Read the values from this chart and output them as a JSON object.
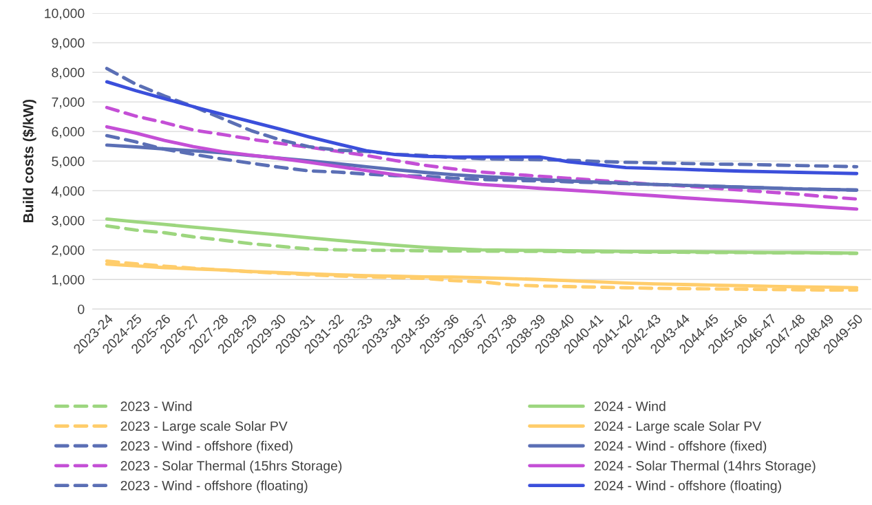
{
  "chart_data": {
    "type": "line",
    "ylabel": "Build costs ($/kW)",
    "categories": [
      "2023-24",
      "2024-25",
      "2025-26",
      "2026-27",
      "2027-28",
      "2028-29",
      "2029-30",
      "2030-31",
      "2031-32",
      "2032-33",
      "2033-34",
      "2034-35",
      "2035-36",
      "2036-37",
      "2037-38",
      "2038-39",
      "2039-40",
      "2040-41",
      "2041-42",
      "2042-43",
      "2043-44",
      "2044-45",
      "2045-46",
      "2046-47",
      "2047-48",
      "2048-49",
      "2049-50"
    ],
    "ylim": [
      0,
      10000
    ],
    "yticks": [
      0,
      {
        "value": 1000,
        "label": "1,000"
      },
      {
        "value": 2000,
        "label": "2,000"
      },
      {
        "value": 3000,
        "label": "3,000"
      },
      {
        "value": 4000,
        "label": "4,000"
      },
      {
        "value": 5000,
        "label": "5,000"
      },
      {
        "value": 6000,
        "label": "6,000"
      },
      {
        "value": 7000,
        "label": "7,000"
      },
      {
        "value": 8000,
        "label": "8,000"
      },
      {
        "value": 9000,
        "label": "9,000"
      },
      {
        "value": 10000,
        "label": "10,000"
      }
    ],
    "grid": "y",
    "legend": "bottom",
    "series": [
      {
        "name": "2023 - Wind",
        "color": "#9dd67f",
        "line_style": "dashed",
        "values": [
          2810,
          2670,
          2580,
          2440,
          2330,
          2210,
          2120,
          2030,
          2000,
          1990,
          1980,
          1970,
          1960,
          1960,
          1950,
          1950,
          1940,
          1930,
          1930,
          1920,
          1920,
          1910,
          1910,
          1900,
          1900,
          1890,
          1880
        ]
      },
      {
        "name": "2023 - Large scale Solar PV",
        "color": "#ffcd6b",
        "line_style": "dashed",
        "values": [
          1620,
          1530,
          1450,
          1380,
          1320,
          1260,
          1210,
          1160,
          1120,
          1090,
          1060,
          1040,
          960,
          920,
          820,
          780,
          760,
          740,
          720,
          700,
          690,
          680,
          670,
          660,
          650,
          640,
          640
        ]
      },
      {
        "name": "2023 - Wind - offshore (fixed)",
        "color": "#5b6fb5",
        "line_style": "dashed",
        "values": [
          5860,
          5650,
          5400,
          5230,
          5070,
          4930,
          4790,
          4670,
          4630,
          4560,
          4510,
          4490,
          4420,
          4380,
          4350,
          4330,
          4300,
          4270,
          4240,
          4210,
          4180,
          4150,
          4120,
          4090,
          4060,
          4040,
          4020
        ]
      },
      {
        "name": "2023 - Solar Thermal (15hrs Storage)",
        "color": "#c44fd6",
        "line_style": "dashed",
        "values": [
          6810,
          6520,
          6300,
          6050,
          5900,
          5740,
          5600,
          5470,
          5330,
          5190,
          5020,
          4860,
          4740,
          4630,
          4560,
          4490,
          4420,
          4350,
          4280,
          4210,
          4160,
          4090,
          4020,
          3950,
          3880,
          3790,
          3720
        ]
      },
      {
        "name": "2023 - Wind - offshore (floating)",
        "color": "#5b6fb5",
        "line_style": "dashed",
        "values": [
          8130,
          7600,
          7200,
          6840,
          6440,
          6030,
          5720,
          5490,
          5370,
          5330,
          5230,
          5190,
          5120,
          5080,
          5060,
          5050,
          5030,
          4990,
          4960,
          4940,
          4920,
          4900,
          4890,
          4870,
          4850,
          4830,
          4810
        ]
      },
      {
        "name": "2024 - Wind",
        "color": "#9dd67f",
        "line_style": "solid",
        "values": [
          3040,
          2950,
          2860,
          2770,
          2680,
          2590,
          2500,
          2410,
          2320,
          2240,
          2160,
          2090,
          2040,
          2000,
          1990,
          1980,
          1970,
          1960,
          1950,
          1940,
          1940,
          1930,
          1920,
          1910,
          1910,
          1900,
          1890
        ]
      },
      {
        "name": "2024 - Large scale Solar PV",
        "color": "#ffcd6b",
        "line_style": "solid",
        "values": [
          1520,
          1460,
          1400,
          1360,
          1320,
          1270,
          1230,
          1190,
          1160,
          1130,
          1110,
          1090,
          1080,
          1060,
          1030,
          1000,
          960,
          920,
          880,
          850,
          830,
          810,
          790,
          770,
          750,
          740,
          720
        ]
      },
      {
        "name": "2024 - Wind - offshore (fixed)",
        "color": "#5b6fb5",
        "line_style": "solid",
        "values": [
          5540,
          5480,
          5410,
          5350,
          5280,
          5190,
          5100,
          5010,
          4910,
          4810,
          4710,
          4620,
          4540,
          4480,
          4430,
          4380,
          4330,
          4290,
          4250,
          4210,
          4180,
          4150,
          4120,
          4090,
          4060,
          4040,
          4020
        ]
      },
      {
        "name": "2024 - Solar Thermal (14hrs Storage)",
        "color": "#c44fd6",
        "line_style": "solid",
        "values": [
          6160,
          5950,
          5700,
          5490,
          5320,
          5200,
          5090,
          4960,
          4820,
          4680,
          4540,
          4420,
          4310,
          4210,
          4150,
          4080,
          4020,
          3960,
          3890,
          3830,
          3760,
          3700,
          3640,
          3570,
          3510,
          3440,
          3380
        ]
      },
      {
        "name": "2024 - Wind - offshore (floating)",
        "color": "#3b4fdb",
        "line_style": "solid",
        "values": [
          7680,
          7380,
          7110,
          6840,
          6580,
          6330,
          6080,
          5820,
          5580,
          5350,
          5220,
          5160,
          5140,
          5140,
          5140,
          5140,
          4980,
          4880,
          4780,
          4750,
          4720,
          4690,
          4660,
          4640,
          4620,
          4600,
          4580
        ]
      }
    ]
  }
}
